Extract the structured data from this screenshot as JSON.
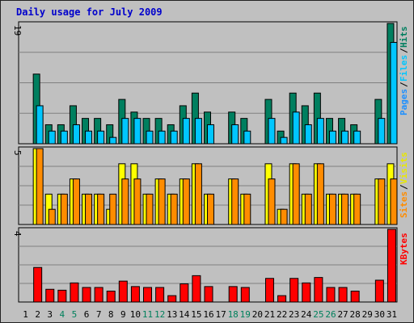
{
  "title": "Daily usage for July 2009",
  "colors": {
    "hits": "#007f5f",
    "files": "#00c6ff",
    "pages": "#00b0ff",
    "visits": "#ffff00",
    "sites": "#ff8c00",
    "kbytes": "#ff0000",
    "weekend": "#00805c",
    "label_dark": "#000000",
    "pages_text": "#1e90ff",
    "sites_text": "#ff8c00",
    "visits_text": "#e8e800",
    "kbytes_text": "#ff0000"
  },
  "chart_data": [
    {
      "type": "bar",
      "panel": "hits-files-pages",
      "categories": [
        "1",
        "2",
        "3",
        "4",
        "5",
        "6",
        "7",
        "8",
        "9",
        "10",
        "11",
        "12",
        "13",
        "14",
        "15",
        "16",
        "17",
        "18",
        "19",
        "20",
        "21",
        "22",
        "23",
        "24",
        "25",
        "26",
        "27",
        "28",
        "29",
        "30",
        "31"
      ],
      "ymax_label": "19",
      "ymax": 19,
      "legend": [
        {
          "text": "Pages",
          "key": "pages_text"
        },
        {
          "text": "Files",
          "key": "files"
        },
        {
          "text": "Hits",
          "key": "hits"
        }
      ],
      "series": [
        {
          "name": "Hits",
          "values": [
            0,
            11,
            3,
            3,
            6,
            4,
            4,
            3,
            7,
            5,
            4,
            4,
            3,
            6,
            8,
            5,
            0,
            5,
            4,
            0,
            7,
            2,
            8,
            6,
            8,
            4,
            4,
            3,
            0,
            7,
            19
          ]
        },
        {
          "name": "Files",
          "values": [
            0,
            6,
            2,
            2,
            3,
            2,
            2,
            1,
            4,
            4,
            2,
            2,
            2,
            4,
            4,
            3,
            0,
            3,
            2,
            0,
            4,
            1,
            5,
            3,
            4,
            2,
            2,
            2,
            0,
            4,
            16
          ]
        }
      ]
    },
    {
      "type": "bar",
      "panel": "visits-sites",
      "categories": [
        "1",
        "2",
        "3",
        "4",
        "5",
        "6",
        "7",
        "8",
        "9",
        "10",
        "11",
        "12",
        "13",
        "14",
        "15",
        "16",
        "17",
        "18",
        "19",
        "20",
        "21",
        "22",
        "23",
        "24",
        "25",
        "26",
        "27",
        "28",
        "29",
        "30",
        "31"
      ],
      "ymax_label": "5",
      "ymax": 5,
      "legend": [
        {
          "text": "Sites",
          "key": "sites_text"
        },
        {
          "text": "Visits",
          "key": "visits_text"
        }
      ],
      "series": [
        {
          "name": "Visits",
          "values": [
            0,
            5,
            2,
            2,
            3,
            2,
            2,
            1,
            4,
            4,
            2,
            3,
            2,
            3,
            4,
            2,
            0,
            3,
            2,
            0,
            4,
            1,
            4,
            2,
            4,
            2,
            2,
            2,
            0,
            3,
            4
          ]
        },
        {
          "name": "Sites",
          "values": [
            0,
            5,
            1,
            2,
            3,
            2,
            2,
            2,
            3,
            3,
            2,
            3,
            2,
            3,
            4,
            2,
            0,
            3,
            2,
            0,
            3,
            1,
            4,
            2,
            4,
            2,
            2,
            2,
            0,
            3,
            3
          ]
        }
      ]
    },
    {
      "type": "bar",
      "panel": "kbytes",
      "categories": [
        "1",
        "2",
        "3",
        "4",
        "5",
        "6",
        "7",
        "8",
        "9",
        "10",
        "11",
        "12",
        "13",
        "14",
        "15",
        "16",
        "17",
        "18",
        "19",
        "20",
        "21",
        "22",
        "23",
        "24",
        "25",
        "26",
        "27",
        "28",
        "29",
        "30",
        "31"
      ],
      "ymax_label": "4",
      "ymax": 4,
      "legend": [
        {
          "text": "KBytes",
          "key": "kbytes_text"
        }
      ],
      "series": [
        {
          "name": "KBytes",
          "values": [
            0,
            1.9,
            0.7,
            0.65,
            1.05,
            0.8,
            0.8,
            0.6,
            1.15,
            0.85,
            0.8,
            0.8,
            0.35,
            1.0,
            1.45,
            0.85,
            0,
            0.85,
            0.8,
            0,
            1.3,
            0.35,
            1.3,
            1.05,
            1.35,
            0.8,
            0.8,
            0.6,
            0,
            1.2,
            4.0
          ]
        }
      ]
    }
  ],
  "weekend_days": [
    4,
    5,
    11,
    12,
    18,
    19,
    25,
    26
  ]
}
